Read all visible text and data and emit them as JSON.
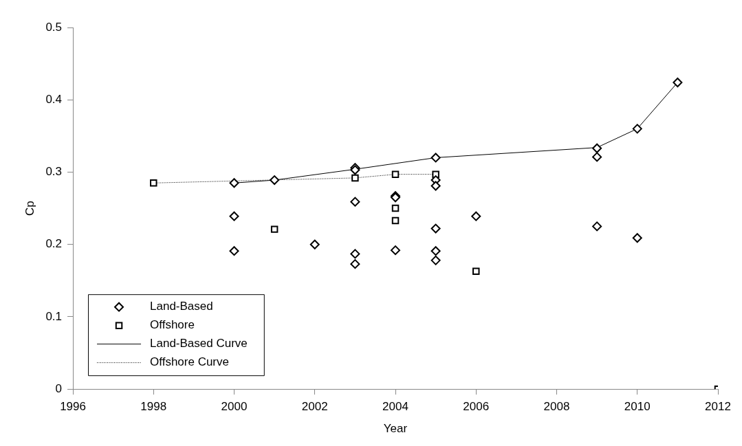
{
  "chart_data": {
    "type": "scatter",
    "xlabel": "Year",
    "ylabel": "Cp",
    "xlim": [
      1996,
      2012
    ],
    "xticks": [
      1996,
      1998,
      2000,
      2002,
      2004,
      2006,
      2008,
      2010,
      2012
    ],
    "ylim": [
      0,
      0.5
    ],
    "yticks": [
      0,
      0.1,
      0.2,
      0.3,
      0.4,
      0.5
    ],
    "grid": false,
    "legend": "bottom left",
    "series": [
      {
        "name": "Land-Based",
        "marker": "diamond",
        "color": "#000000",
        "x": [
          2000,
          2000,
          2000,
          2001,
          2002,
          2003,
          2003,
          2003,
          2003,
          2003,
          2004,
          2004,
          2004,
          2005,
          2005,
          2005,
          2005,
          2005,
          2005,
          2006,
          2009,
          2009,
          2009,
          2010,
          2010,
          2011
        ],
        "values": [
          0.285,
          0.239,
          0.191,
          0.289,
          0.2,
          0.306,
          0.303,
          0.259,
          0.187,
          0.173,
          0.267,
          0.265,
          0.192,
          0.32,
          0.289,
          0.281,
          0.222,
          0.191,
          0.178,
          0.239,
          0.333,
          0.321,
          0.225,
          0.36,
          0.209,
          0.424
        ]
      },
      {
        "name": "Offshore",
        "marker": "square",
        "color": "#000000",
        "x": [
          1998,
          2001,
          2003,
          2004,
          2004,
          2004,
          2005,
          2006,
          2012
        ],
        "values": [
          0.285,
          0.221,
          0.292,
          0.297,
          0.25,
          0.233,
          0.297,
          0.163,
          0
        ]
      },
      {
        "name": "Land-Based Curve",
        "type": "line",
        "marker": "none",
        "line_style": "solid",
        "color": "#000000",
        "x": [
          2000,
          2001,
          2003,
          2005,
          2009,
          2010,
          2011
        ],
        "values": [
          0.285,
          0.289,
          0.304,
          0.32,
          0.334,
          0.36,
          0.424
        ]
      },
      {
        "name": "Offshore Curve",
        "type": "line",
        "marker": "none",
        "line_style": "dotted",
        "color": "#000000",
        "x": [
          1998,
          2003,
          2004,
          2005
        ],
        "values": [
          0.285,
          0.292,
          0.297,
          0.297
        ]
      }
    ]
  }
}
